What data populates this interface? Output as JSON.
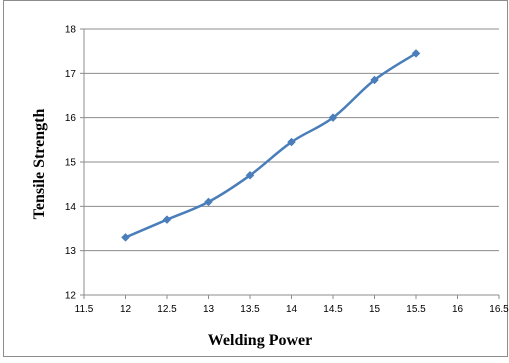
{
  "chart_data": {
    "type": "line",
    "title": "",
    "xlabel": "Welding Power",
    "ylabel": "Tensile Strength",
    "xlim": [
      11.5,
      16.5
    ],
    "ylim": [
      12,
      18
    ],
    "x_ticks": [
      11.5,
      12,
      12.5,
      13,
      13.5,
      14,
      14.5,
      15,
      15.5,
      16,
      16.5
    ],
    "y_ticks": [
      12,
      13,
      14,
      15,
      16,
      17,
      18
    ],
    "grid": "horizontal",
    "legend": "none",
    "series": [
      {
        "color": "#4a7ebb",
        "marker": "diamond",
        "x": [
          12,
          12.5,
          13,
          13.5,
          14,
          14.5,
          15,
          15.5
        ],
        "y": [
          13.3,
          13.7,
          14.1,
          14.7,
          15.45,
          16.0,
          16.85,
          17.45
        ]
      }
    ],
    "colors": {
      "gridline": "#8c8c8c",
      "axis": "#8c8c8c",
      "frame": "#8c8c8c"
    }
  }
}
